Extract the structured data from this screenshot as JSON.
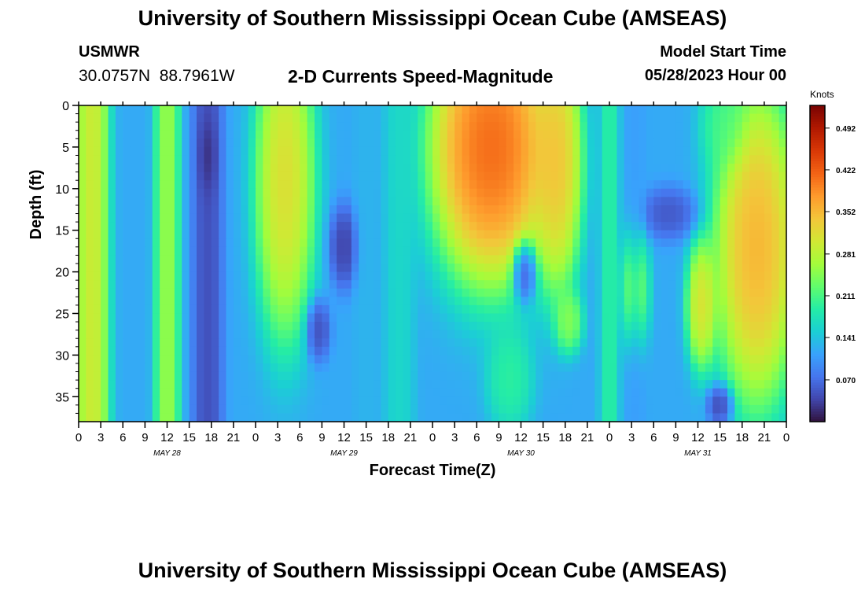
{
  "header": {
    "title": "University of Southern Mississippi Ocean Cube (AMSEAS)",
    "station": "USMWR",
    "coordinates": "30.0757N  88.7961W",
    "subtitle": "2-D Currents Speed-Magnitude",
    "model_start_label": "Model Start Time",
    "model_start_value": "05/28/2023 Hour 00"
  },
  "footer": {
    "title": "University of Southern Mississippi Ocean Cube (AMSEAS)"
  },
  "chart_data": {
    "type": "heatmap",
    "title": "2-D Currents Speed-Magnitude",
    "xlabel": "Forecast Time(Z)",
    "ylabel": "Depth (ft)",
    "x_range_hours": [
      0,
      96
    ],
    "y_range_ft": [
      0,
      38
    ],
    "x_ticks": [
      {
        "h": 0,
        "label": "0"
      },
      {
        "h": 3,
        "label": "3"
      },
      {
        "h": 6,
        "label": "6"
      },
      {
        "h": 9,
        "label": "9"
      },
      {
        "h": 12,
        "label": "12"
      },
      {
        "h": 15,
        "label": "15"
      },
      {
        "h": 18,
        "label": "18"
      },
      {
        "h": 21,
        "label": "21"
      },
      {
        "h": 24,
        "label": "0"
      },
      {
        "h": 27,
        "label": "3"
      },
      {
        "h": 30,
        "label": "6"
      },
      {
        "h": 33,
        "label": "9"
      },
      {
        "h": 36,
        "label": "12"
      },
      {
        "h": 39,
        "label": "15"
      },
      {
        "h": 42,
        "label": "18"
      },
      {
        "h": 45,
        "label": "21"
      },
      {
        "h": 48,
        "label": "0"
      },
      {
        "h": 51,
        "label": "3"
      },
      {
        "h": 54,
        "label": "6"
      },
      {
        "h": 57,
        "label": "9"
      },
      {
        "h": 60,
        "label": "12"
      },
      {
        "h": 63,
        "label": "15"
      },
      {
        "h": 66,
        "label": "18"
      },
      {
        "h": 69,
        "label": "21"
      },
      {
        "h": 72,
        "label": "0"
      },
      {
        "h": 75,
        "label": "3"
      },
      {
        "h": 78,
        "label": "6"
      },
      {
        "h": 81,
        "label": "9"
      },
      {
        "h": 84,
        "label": "12"
      },
      {
        "h": 87,
        "label": "15"
      },
      {
        "h": 90,
        "label": "18"
      },
      {
        "h": 93,
        "label": "21"
      },
      {
        "h": 96,
        "label": "0"
      }
    ],
    "day_labels": [
      {
        "h": 12,
        "label": "MAY 28"
      },
      {
        "h": 36,
        "label": "MAY 29"
      },
      {
        "h": 60,
        "label": "MAY 30"
      },
      {
        "h": 84,
        "label": "MAY 31"
      }
    ],
    "y_ticks": [
      {
        "ft": 0,
        "label": "0"
      },
      {
        "ft": 5,
        "label": "5"
      },
      {
        "ft": 10,
        "label": "10"
      },
      {
        "ft": 15,
        "label": "15"
      },
      {
        "ft": 20,
        "label": "20"
      },
      {
        "ft": 25,
        "label": "25"
      },
      {
        "ft": 30,
        "label": "30"
      },
      {
        "ft": 35,
        "label": "35"
      }
    ],
    "colorbar": {
      "unit": "Knots",
      "min": 0.0,
      "max": 0.53,
      "ticks": [
        "0.070",
        "0.141",
        "0.211",
        "0.281",
        "0.352",
        "0.422",
        "0.492"
      ],
      "colors": [
        "#30123b",
        "#4145ab",
        "#4675ed",
        "#39a2fc",
        "#1bcfd4",
        "#24eca6",
        "#61fc6c",
        "#a4fc3b",
        "#d1e834",
        "#f3c63a",
        "#fe9b2d",
        "#f36315",
        "#d93806",
        "#b11901",
        "#7a0402"
      ]
    },
    "features": [
      {
        "kind": "band",
        "h": 1.8,
        "w": 1.8,
        "v": 0.34
      },
      {
        "kind": "band",
        "h": 12,
        "w": 1.3,
        "v": 0.29
      },
      {
        "kind": "band",
        "h": 17.5,
        "w": 1.6,
        "v": 0.03
      },
      {
        "kind": "band",
        "h": 39,
        "w": 1.3,
        "v": 0.13
      },
      {
        "kind": "band",
        "h": 43.5,
        "w": 1.6,
        "v": 0.17
      },
      {
        "kind": "band",
        "h": 72,
        "w": 1.0,
        "v": 0.21
      },
      {
        "kind": "band",
        "h": 75.5,
        "w": 1.0,
        "v": 0.11
      },
      {
        "kind": "blob",
        "h": 28,
        "d": 9,
        "wh": 3.2,
        "wd": 15,
        "v": 0.36
      },
      {
        "kind": "blob",
        "h": 56,
        "d": 5,
        "wh": 6.5,
        "wd": 13,
        "v": 0.48
      },
      {
        "kind": "blob",
        "h": 65,
        "d": 7,
        "wh": 2.6,
        "wd": 12,
        "v": 0.38
      },
      {
        "kind": "blob",
        "h": 92,
        "d": 17,
        "wh": 4.5,
        "wd": 15,
        "v": 0.41
      },
      {
        "kind": "blob",
        "h": 87.5,
        "d": 2,
        "wh": 2.5,
        "wd": 5,
        "v": 0.22
      },
      {
        "kind": "blob",
        "h": 36,
        "d": 17,
        "wh": 1.6,
        "wd": 4,
        "v": 0.02
      },
      {
        "kind": "blob",
        "h": 60.5,
        "d": 20,
        "wh": 1.3,
        "wd": 3,
        "v": 0.02
      },
      {
        "kind": "blob",
        "h": 80,
        "d": 13,
        "wh": 3.0,
        "wd": 2.5,
        "v": 0.04
      },
      {
        "kind": "blob",
        "h": 32.5,
        "d": 27,
        "wh": 1.3,
        "wd": 3,
        "v": 0.03
      },
      {
        "kind": "blob",
        "h": 87,
        "d": 36,
        "wh": 1.4,
        "wd": 2,
        "v": 0.02
      },
      {
        "kind": "blob",
        "h": 17.5,
        "d": 6,
        "wh": 1.0,
        "wd": 4,
        "v": 0.0
      },
      {
        "kind": "blob",
        "h": 75.5,
        "d": 22,
        "wh": 1.4,
        "wd": 6,
        "v": 0.32
      },
      {
        "kind": "blob",
        "h": 84.5,
        "d": 24,
        "wh": 1.6,
        "wd": 6,
        "v": 0.35
      },
      {
        "kind": "blob",
        "h": 66.5,
        "d": 26,
        "wh": 1.5,
        "wd": 3,
        "v": 0.27
      },
      {
        "kind": "blob",
        "h": 58.5,
        "d": 33,
        "wh": 2.5,
        "wd": 5,
        "v": 0.21
      }
    ],
    "background_value": 0.12
  }
}
